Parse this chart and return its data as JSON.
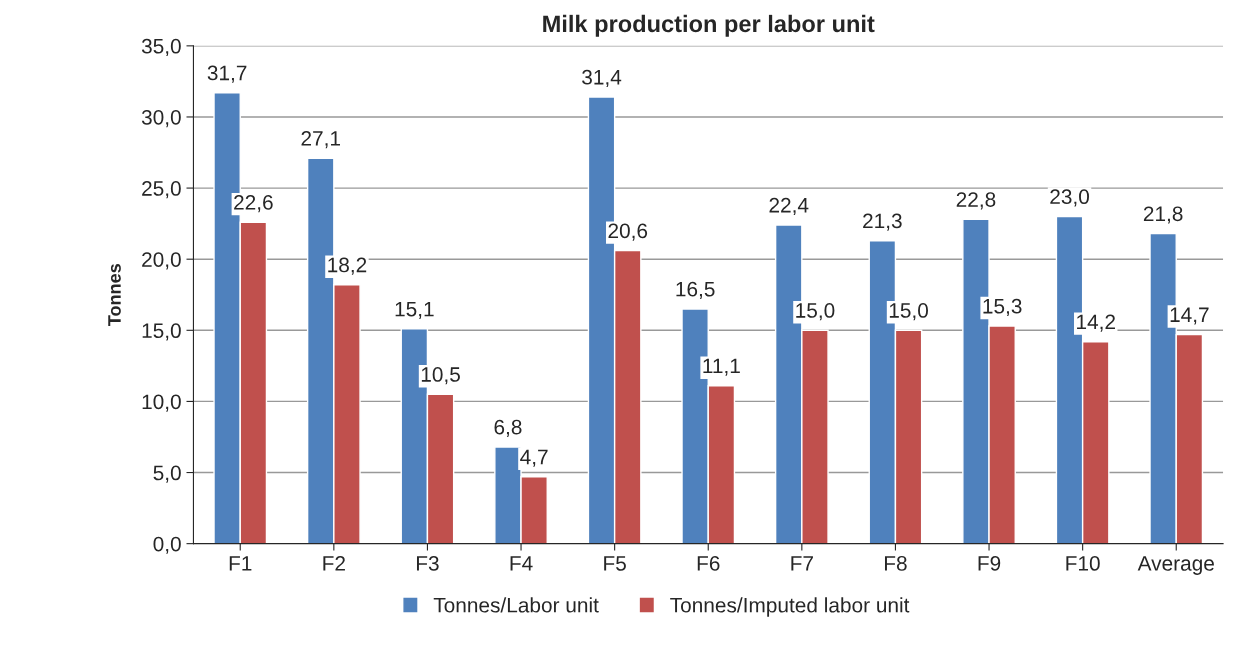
{
  "chart_data": {
    "type": "bar",
    "title": "Milk production per labor unit",
    "ylabel": "Tonnes",
    "categories": [
      "F1",
      "F2",
      "F3",
      "F4",
      "F5",
      "F6",
      "F7",
      "F8",
      "F9",
      "F10",
      "Average"
    ],
    "series": [
      {
        "name": "Tonnes/Labor unit",
        "color": "#4f81bd",
        "values": [
          31.7,
          27.1,
          15.1,
          6.8,
          31.4,
          16.5,
          22.4,
          21.3,
          22.8,
          23.0,
          21.8
        ],
        "value_labels": [
          "31,7",
          "27,1",
          "15,1",
          "6,8",
          "31,4",
          "16,5",
          "22,4",
          "21,3",
          "22,8",
          "23,0",
          "21,8"
        ]
      },
      {
        "name": "Tonnes/Imputed labor unit",
        "color": "#c0504d",
        "values": [
          22.6,
          18.2,
          10.5,
          4.7,
          20.6,
          11.1,
          15.0,
          15.0,
          15.3,
          14.2,
          14.7
        ],
        "value_labels": [
          "22,6",
          "18,2",
          "10,5",
          "4,7",
          "20,6",
          "11,1",
          "15,0",
          "15,0",
          "15,3",
          "14,2",
          "14,7"
        ]
      }
    ],
    "ylim": [
      0,
      35
    ],
    "yticks": [
      {
        "value": 0,
        "label": "0,0"
      },
      {
        "value": 5,
        "label": "5,0"
      },
      {
        "value": 10,
        "label": "10,0"
      },
      {
        "value": 15,
        "label": "15,0"
      },
      {
        "value": 20,
        "label": "20,0"
      },
      {
        "value": 25,
        "label": "25,0"
      },
      {
        "value": 30,
        "label": "30,0"
      },
      {
        "value": 35,
        "label": "35,0"
      }
    ],
    "grid": "y",
    "legend": "bottom"
  }
}
